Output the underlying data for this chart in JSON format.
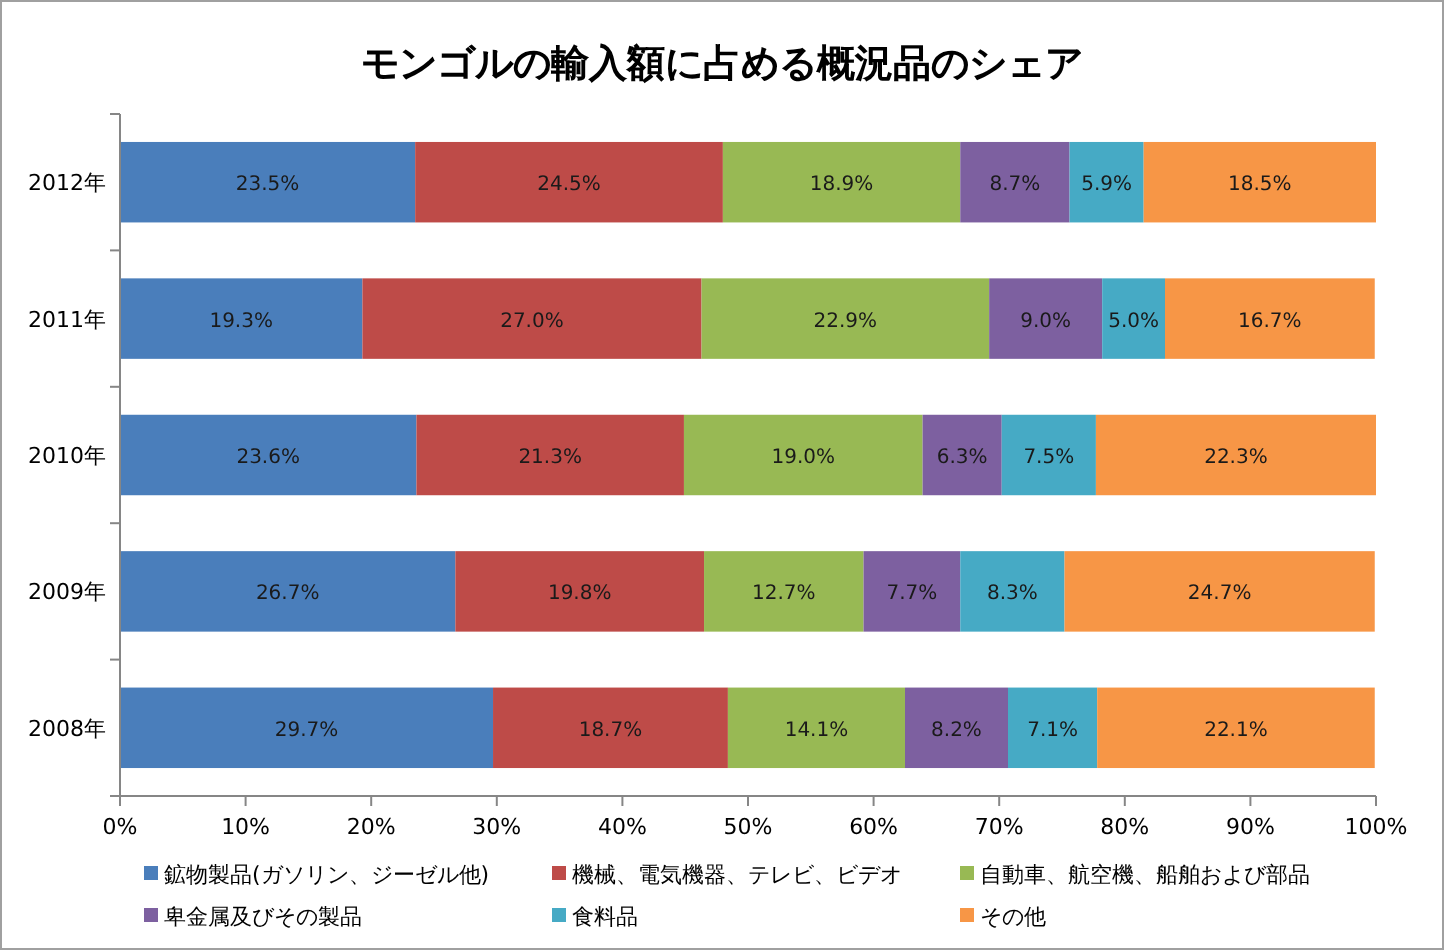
{
  "chart_data": {
    "type": "bar",
    "orientation": "horizontal",
    "stacked": true,
    "title": "モンゴルの輸入額に占める概況品のシェア",
    "categories": [
      "2012年",
      "2011年",
      "2010年",
      "2009年",
      "2008年"
    ],
    "xlim": [
      0,
      100
    ],
    "xticks": [
      {
        "value": 0,
        "label": "0%"
      },
      {
        "value": 10,
        "label": "10%"
      },
      {
        "value": 20,
        "label": "20%"
      },
      {
        "value": 30,
        "label": "30%"
      },
      {
        "value": 40,
        "label": "40%"
      },
      {
        "value": 50,
        "label": "50%"
      },
      {
        "value": 60,
        "label": "60%"
      },
      {
        "value": 70,
        "label": "70%"
      },
      {
        "value": 80,
        "label": "80%"
      },
      {
        "value": 90,
        "label": "90%"
      },
      {
        "value": 100,
        "label": "100%"
      }
    ],
    "legend": "bottom",
    "series": [
      {
        "name": "鉱物製品(ガソリン、ジーゼル他)",
        "color": "#4a7ebb",
        "values": [
          23.5,
          19.3,
          23.6,
          26.7,
          29.7
        ],
        "value_labels": [
          "23.5%",
          "19.3%",
          "23.6%",
          "26.7%",
          "29.7%"
        ]
      },
      {
        "name": "機械、電気機器、テレビ、ビデオ",
        "color": "#be4b48",
        "values": [
          24.5,
          27.0,
          21.3,
          19.8,
          18.7
        ],
        "value_labels": [
          "24.5%",
          "27.0%",
          "21.3%",
          "19.8%",
          "18.7%"
        ]
      },
      {
        "name": "自動車、航空機、船舶および部品",
        "color": "#98b954",
        "values": [
          18.9,
          22.9,
          19.0,
          12.7,
          14.1
        ],
        "value_labels": [
          "18.9%",
          "22.9%",
          "19.0%",
          "12.7%",
          "14.1%"
        ]
      },
      {
        "name": "卑金属及びその製品",
        "color": "#7d60a0",
        "values": [
          8.7,
          9.0,
          6.3,
          7.7,
          8.2
        ],
        "value_labels": [
          "8.7%",
          "9.0%",
          "6.3%",
          "7.7%",
          "8.2%"
        ]
      },
      {
        "name": "食料品",
        "color": "#46aac5",
        "values": [
          5.9,
          5.0,
          7.5,
          8.3,
          7.1
        ],
        "value_labels": [
          "5.9%",
          "5.0%",
          "7.5%",
          "8.3%",
          "7.1%"
        ]
      },
      {
        "name": "その他",
        "color": "#f79646",
        "values": [
          18.5,
          16.7,
          22.3,
          24.7,
          22.1
        ],
        "value_labels": [
          "18.5%",
          "16.7%",
          "22.3%",
          "24.7%",
          "22.1%"
        ]
      }
    ]
  }
}
